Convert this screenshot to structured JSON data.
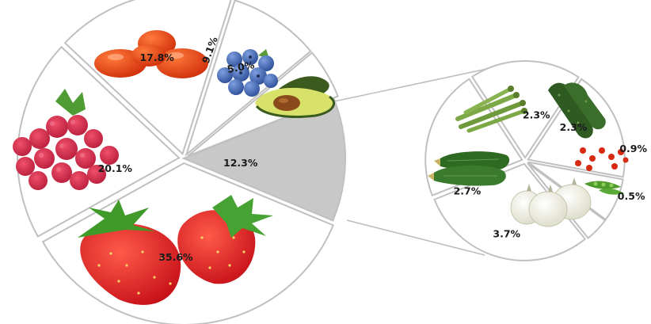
{
  "chart_data": [
    {
      "type": "pie",
      "slices": [
        {
          "label": "35.6%",
          "value": 35.6,
          "icon": "strawberry-icon",
          "color": "#ffffff"
        },
        {
          "label": "20.1%",
          "value": 20.1,
          "icon": "raspberry-icon",
          "color": "#ffffff"
        },
        {
          "label": "17.8%",
          "value": 17.8,
          "icon": "tomato-icon",
          "color": "#ffffff"
        },
        {
          "label": "9.1%",
          "value": 9.1,
          "icon": "blueberry-icon",
          "color": "#ffffff"
        },
        {
          "label": "5.0%",
          "value": 5.0,
          "icon": "avocado-icon",
          "color": "#ffffff"
        },
        {
          "label": "12.3%",
          "value": 12.3,
          "icon": "other-slice",
          "color": "#c8c8c8"
        }
      ]
    },
    {
      "type": "pie",
      "slices": [
        {
          "label": "2.3%",
          "value": 2.3,
          "icon": "asparagus-icon"
        },
        {
          "label": "2.3%",
          "value": 2.3,
          "icon": "cucumber-icon"
        },
        {
          "label": "0.9%",
          "value": 0.9,
          "icon": "cherry-tomato-icon"
        },
        {
          "label": "0.5%",
          "value": 0.5,
          "icon": "pea-pod-icon"
        },
        {
          "label": "3.7%",
          "value": 3.7,
          "icon": "onion-icon"
        },
        {
          "label": "2.7%",
          "value": 2.7,
          "icon": "zucchini-icon"
        }
      ]
    }
  ]
}
